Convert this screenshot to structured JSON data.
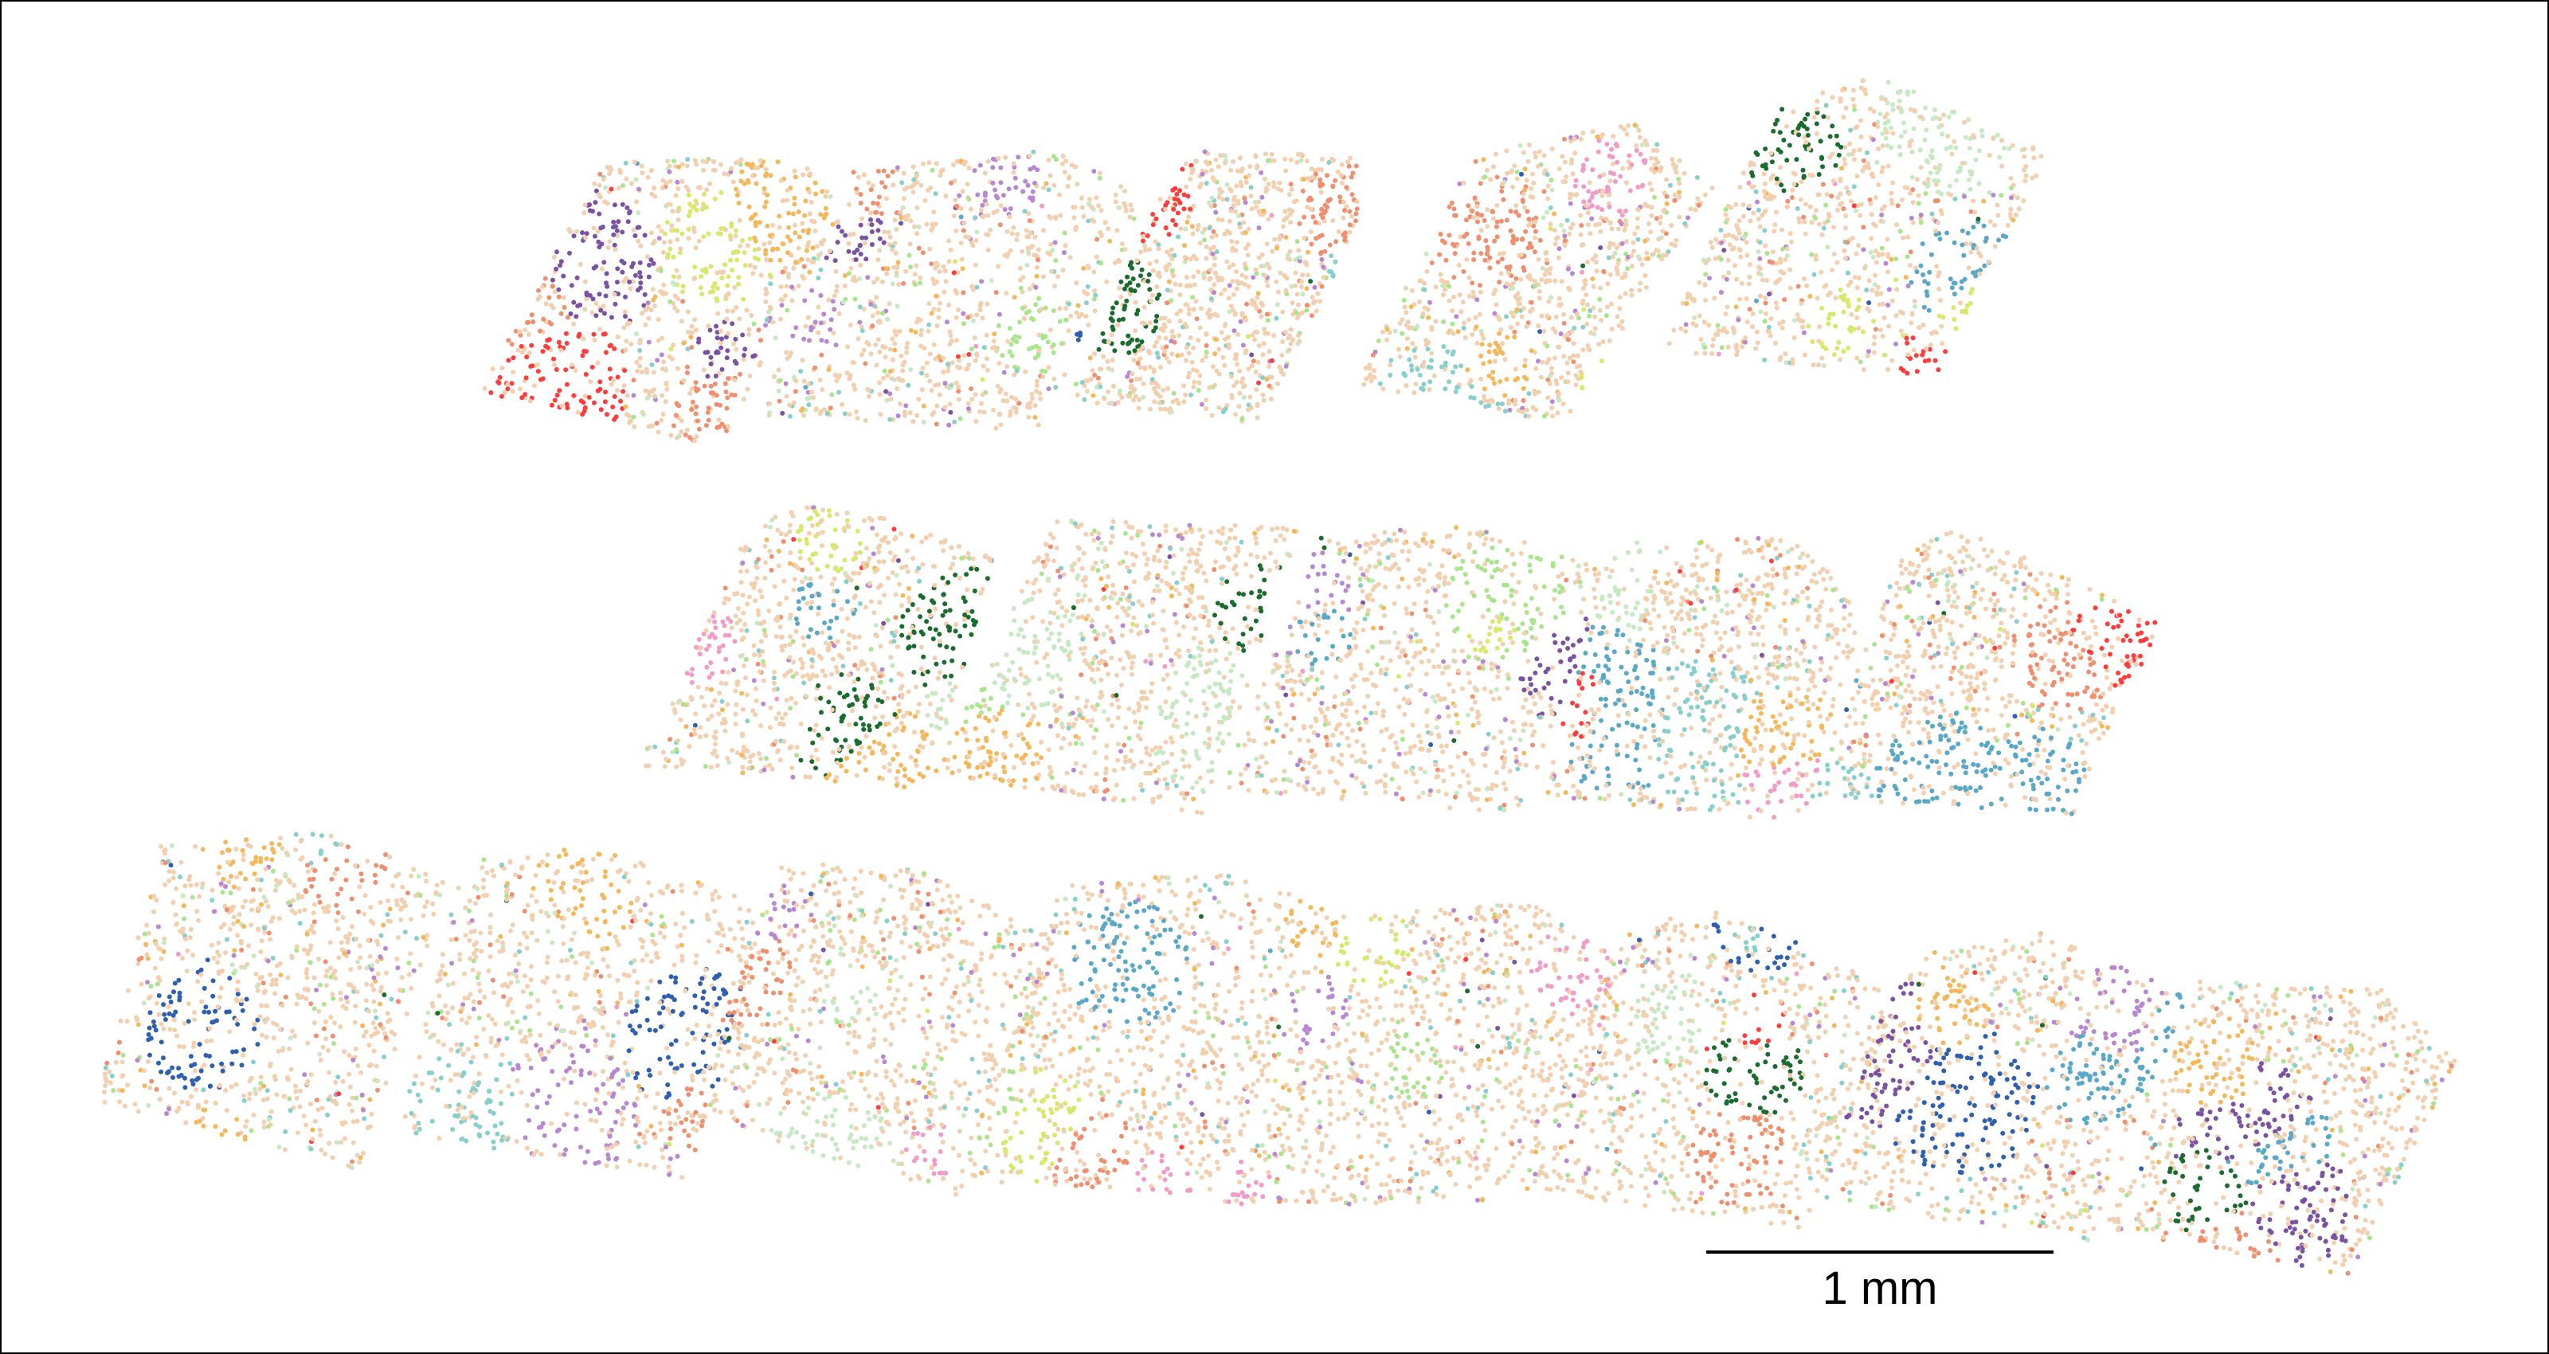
{
  "figure": {
    "type": "spatial-transcriptomics-cell-map",
    "scale_bar": {
      "label": "1 mm"
    },
    "sample_rows": 3,
    "tiles_per_row": [
      5,
      5,
      8
    ],
    "background": "#ffffff",
    "frame_color": "#000000",
    "dominant_cell_color": "#f2cfae",
    "cell_type_colors": [
      "#f2cfae",
      "#b887d1",
      "#86cfcb",
      "#a9e58c",
      "#f4b85a",
      "#ef8f6f",
      "#c6e8c2",
      "#5aa8c8",
      "#f29bc7",
      "#2f5fb0",
      "#1a6b2e",
      "#ff3b3b",
      "#7a52a3",
      "#d7e86a"
    ]
  }
}
